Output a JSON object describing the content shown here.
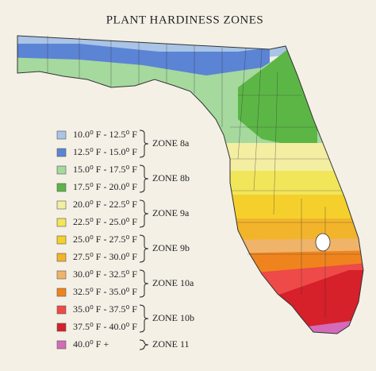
{
  "title": "PLANT HARDINESS ZONES",
  "legend": [
    {
      "zone": "ZONE 8a",
      "items": [
        {
          "label": "10.0⁰ F - 12.5⁰ F",
          "color": "#a9c4e6"
        },
        {
          "label": "12.5⁰ F - 15.0⁰ F",
          "color": "#5b84d4"
        }
      ]
    },
    {
      "zone": "ZONE 8b",
      "items": [
        {
          "label": "15.0⁰ F - 17.5⁰ F",
          "color": "#a5d99e"
        },
        {
          "label": "17.5⁰ F - 20.0⁰ F",
          "color": "#5cb646"
        }
      ]
    },
    {
      "zone": "ZONE 9a",
      "items": [
        {
          "label": "20.0⁰ F - 22.5⁰ F",
          "color": "#f3eea2"
        },
        {
          "label": "22.5⁰ F - 25.0⁰ F",
          "color": "#f1e65a"
        }
      ]
    },
    {
      "zone": "ZONE 9b",
      "items": [
        {
          "label": "25.0⁰ F - 27.5⁰ F",
          "color": "#f5d02c"
        },
        {
          "label": "27.5⁰ F - 30.0⁰ F",
          "color": "#f2b42a"
        }
      ]
    },
    {
      "zone": "ZONE 10a",
      "items": [
        {
          "label": "30.0⁰ F - 32.5⁰ F",
          "color": "#efb46a"
        },
        {
          "label": "32.5⁰ F - 35.0⁰ F",
          "color": "#ef841f"
        }
      ]
    },
    {
      "zone": "ZONE 10b",
      "items": [
        {
          "label": "35.0⁰ F - 37.5⁰ F",
          "color": "#ee4a48"
        },
        {
          "label": "37.5⁰ F - 40.0⁰ F",
          "color": "#d6202a"
        }
      ]
    },
    {
      "zone": "ZONE 11",
      "items": [
        {
          "label": "40.0⁰ F +",
          "color": "#d46bb8"
        }
      ]
    }
  ]
}
